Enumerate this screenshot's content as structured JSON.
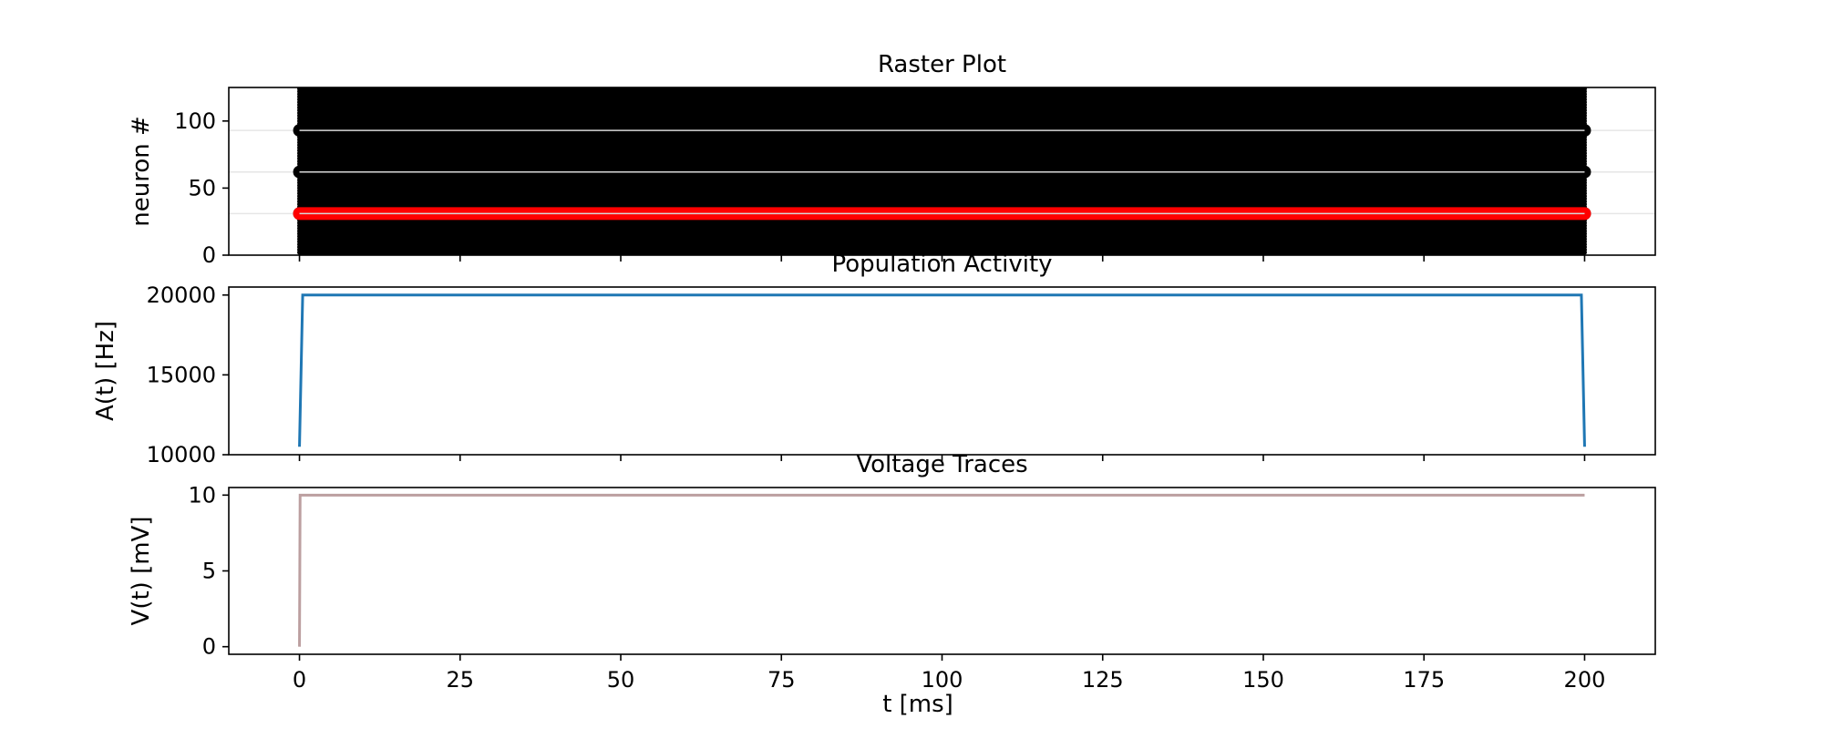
{
  "colors": {
    "raster": "#000000",
    "raster_highlight": "#ff0000",
    "population": "#1f77b4",
    "voltage": "#bc9fa0"
  },
  "xaxis": {
    "label": "t [ms]",
    "xlim": [
      -11,
      211
    ],
    "ticks": [
      0,
      25,
      50,
      75,
      100,
      125,
      150,
      175,
      200
    ],
    "tick_labels": [
      "0",
      "25",
      "50",
      "75",
      "100",
      "125",
      "150",
      "175",
      "200"
    ]
  },
  "chart_data": [
    {
      "type": "scatter",
      "title": "Raster Plot",
      "ylabel": "neuron #",
      "xlim": [
        -11,
        211
      ],
      "ylim": [
        0,
        125
      ],
      "yticks": [
        0,
        50,
        100
      ],
      "ytick_labels": [
        "0",
        "50",
        "100"
      ],
      "x_range": [
        0,
        200
      ],
      "neurons_y": [
        2,
        4,
        6,
        8,
        10,
        12,
        14,
        16,
        18,
        20,
        22,
        24,
        26,
        28,
        30,
        32,
        34,
        36,
        38,
        40,
        42,
        44,
        46,
        48,
        50,
        52,
        54,
        56,
        58,
        60,
        62,
        64,
        66,
        68,
        70,
        72,
        74,
        76,
        78,
        80,
        82,
        84,
        86,
        88,
        90,
        92,
        94,
        96,
        98,
        100,
        102,
        104,
        106,
        108,
        110,
        112,
        114,
        116,
        118,
        120,
        122,
        124
      ],
      "highlight_neurons_y": [
        31
      ],
      "trace_lines_y": [
        31,
        62,
        93
      ]
    },
    {
      "type": "line",
      "title": "Population Activity",
      "ylabel": "A(t) [Hz]",
      "xlim": [
        -11,
        211
      ],
      "ylim": [
        10000,
        20500
      ],
      "yticks": [
        10000,
        15000,
        20000
      ],
      "ytick_labels": [
        "10000",
        "15000",
        "20000"
      ],
      "series": [
        {
          "x": [
            0,
            0.5,
            199.5,
            200
          ],
          "y": [
            10500,
            20000,
            20000,
            10500
          ]
        }
      ]
    },
    {
      "type": "line",
      "title": "Voltage Traces",
      "ylabel": "V(t) [mV]",
      "xlim": [
        -11,
        211
      ],
      "ylim": [
        -0.5,
        10.5
      ],
      "yticks": [
        0,
        5,
        10
      ],
      "ytick_labels": [
        "0",
        "5",
        "10"
      ],
      "series": [
        {
          "x": [
            0,
            0.1,
            200
          ],
          "y": [
            0,
            10,
            10
          ]
        }
      ]
    }
  ]
}
